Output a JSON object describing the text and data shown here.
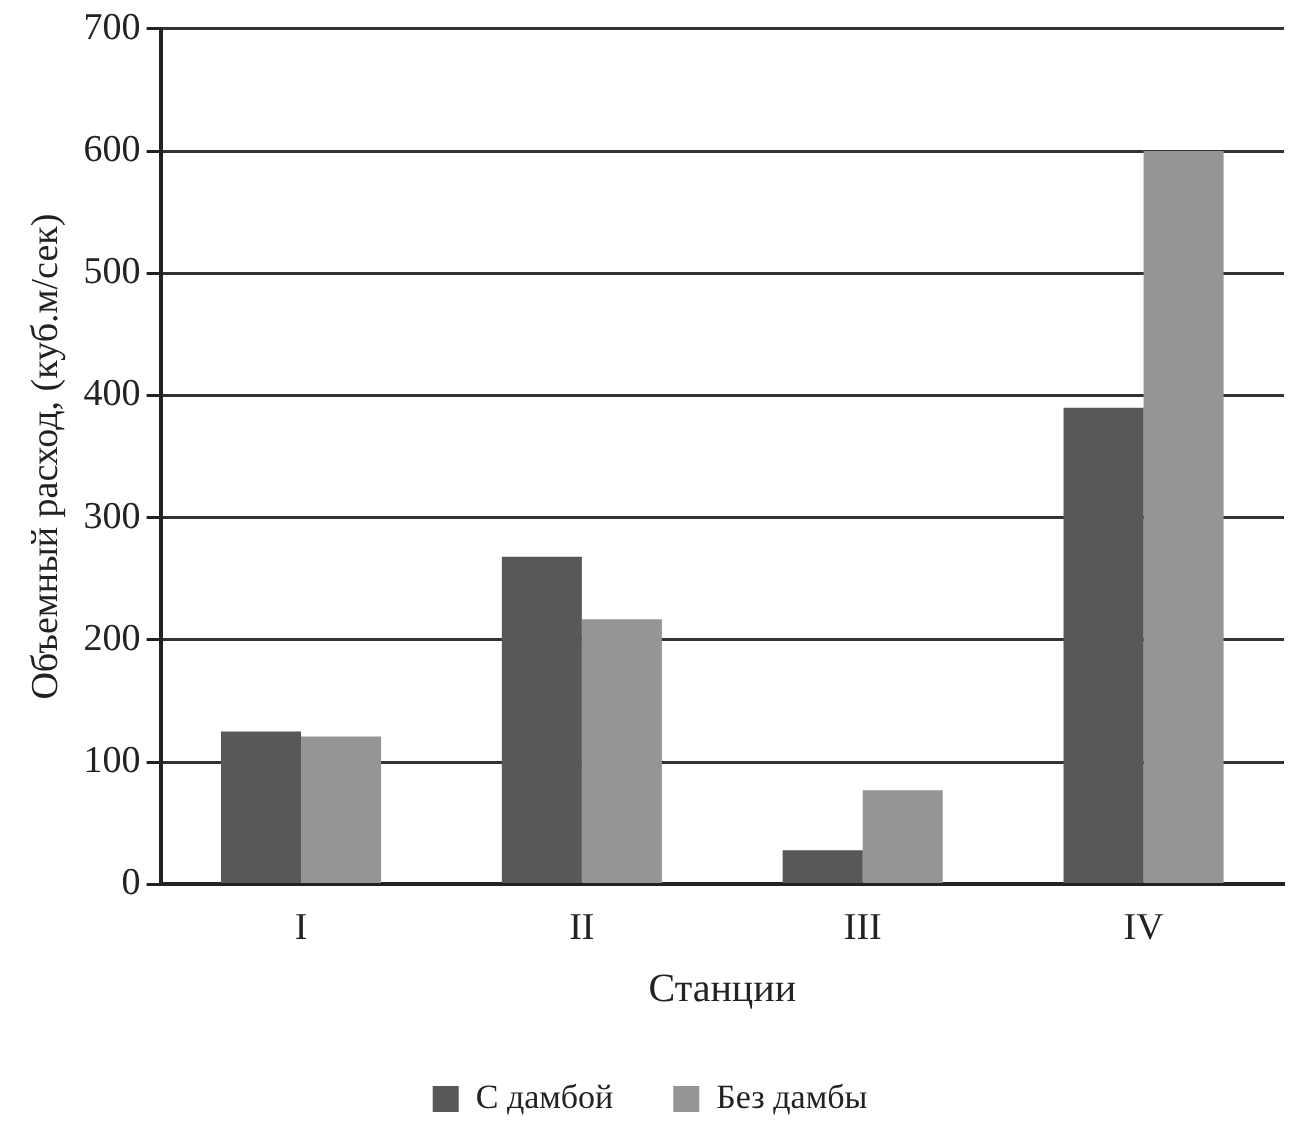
{
  "chart_data": {
    "type": "bar",
    "xlabel": "Станции",
    "ylabel": "Объемный расход, (куб.м/сек)",
    "categories": [
      "I",
      "II",
      "III",
      "IV"
    ],
    "series": [
      {
        "name": "С дамбой",
        "color": "#58585a",
        "values": [
          125,
          268,
          28,
          390
        ]
      },
      {
        "name": "Без дамбы",
        "color": "#959598",
        "values": [
          121,
          217,
          77,
          600
        ]
      }
    ],
    "ylim": [
      0,
      700
    ],
    "yticks": [
      0,
      100,
      200,
      300,
      400,
      500,
      600,
      700
    ],
    "grid": "y",
    "legend": "bottom"
  }
}
